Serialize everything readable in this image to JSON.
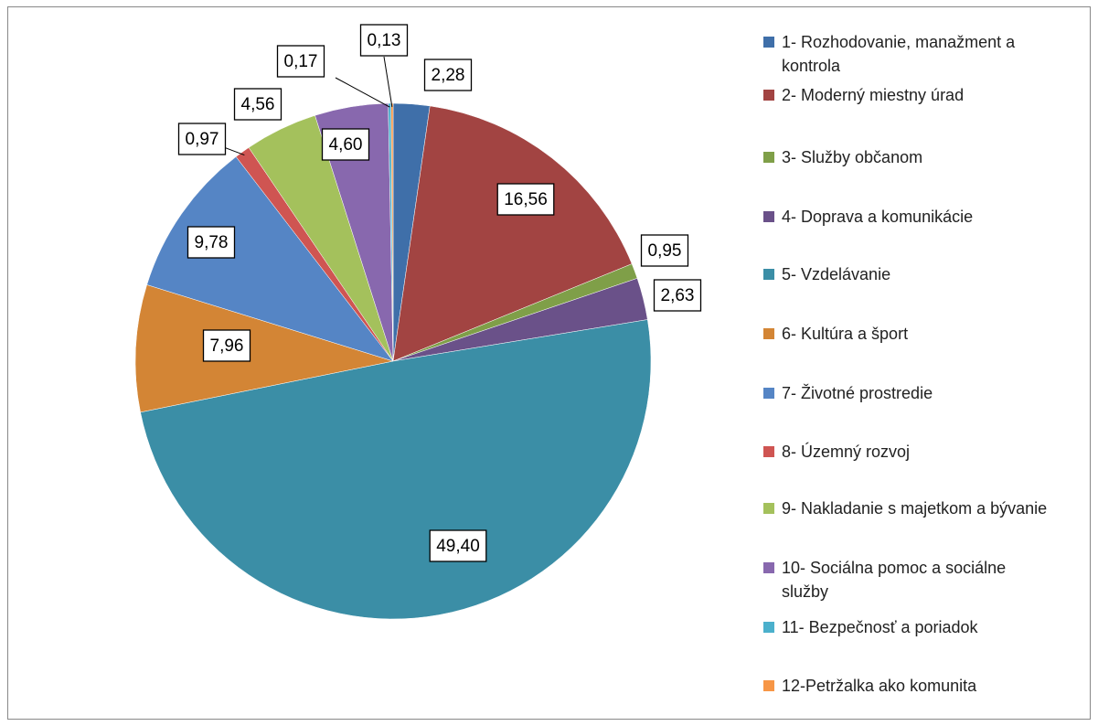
{
  "chart_data": {
    "type": "pie",
    "categories": [
      "1- Rozhodovanie, manažment a kontrola",
      "2- Moderný miestny úrad",
      "3- Služby občanom",
      "4- Doprava a komunikácie",
      "5- Vzdelávanie",
      "6- Kultúra a šport",
      "7- Životné prostredie",
      "8- Územný rozvoj",
      "9- Nakladanie s majetkom a bývanie",
      "10- Sociálna pomoc a sociálne služby",
      "11- Bezpečnosť a poriadok",
      "12-Petržalka ako komunita"
    ],
    "values": [
      2.28,
      16.56,
      0.95,
      2.63,
      49.4,
      7.96,
      9.78,
      0.97,
      4.56,
      4.6,
      0.17,
      0.13
    ],
    "value_labels": [
      "2,28",
      "16,56",
      "0,95",
      "2,63",
      "49,40",
      "7,96",
      "9,78",
      "0,97",
      "4,56",
      "4,60",
      "0,17",
      "0,13"
    ],
    "colors": [
      "#3f6fa9",
      "#a24442",
      "#7f9f48",
      "#6a5189",
      "#3b8ea6",
      "#d38535",
      "#5585c5",
      "#cf5552",
      "#a4c15c",
      "#8868ae",
      "#4bb0cc",
      "#f79646"
    ],
    "legend": "right"
  }
}
